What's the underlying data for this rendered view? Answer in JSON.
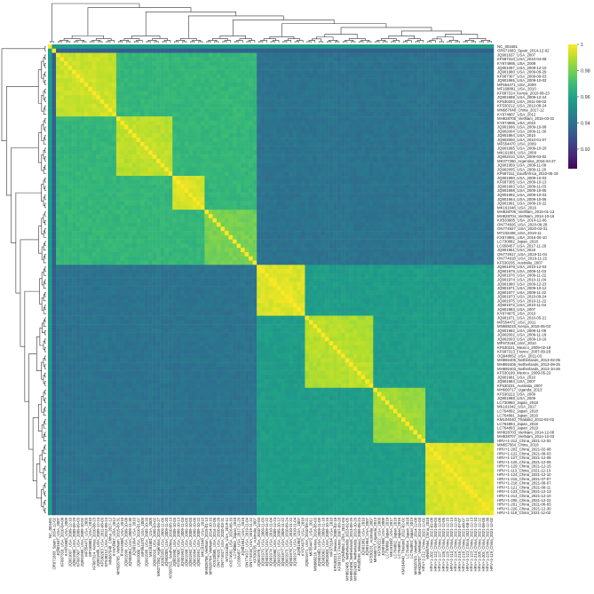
{
  "chart_data": {
    "type": "heatmap",
    "title": "",
    "xlabel": "",
    "ylabel": "",
    "colorscale": [
      "#440154",
      "#3b528b",
      "#21918c",
      "#5ec962",
      "#fde725"
    ],
    "colorbar": {
      "min": 0.905,
      "max": 1.0,
      "ticks": [
        "1",
        "0.98",
        "0.96",
        "0.94",
        "0.92"
      ]
    },
    "dendrograms": {
      "top": true,
      "left": true
    },
    "labels": [
      "NC_003481",
      "OR671683_Spain_2014-12-02",
      "JQ901637_USA_2007",
      "KF687310_USA_2010-04-08",
      "KY674985_USA_2009",
      "JQ901097_USA_2009-12-10",
      "JQ901980_USA_2009-09-29",
      "KF687307_USA_2009-09-03",
      "JQ901965_USA_2009-10-02",
      "MF554471_USA_2009",
      "MF168881_USA_2010",
      "KF687314_Kenya_2010-08-23",
      "JQ901999_USA_2009-12-24",
      "KF530203_USA_2011-08-03",
      "KF530212_USA_2012-08-24",
      "MN687048_China_2017-12",
      "KY674987_USA_2012",
      "MH828705_VietNam_2015-03-31",
      "KY674986_USA_2010",
      "JQ901996_USA_2009-10-08",
      "JQ902004_USA_2009-11-30",
      "JQ901994_USA_2010",
      "JQ902000_USA_2010-01-07",
      "MF554470_USA_2009",
      "JQ901995_USA_2009-10-20",
      "MK161801_USA_2009",
      "JQ902010_USA_2009-03-02",
      "MK077250_Argentina_2016-04-27",
      "JQ901959_USA_2009-11-09",
      "JQ902005_USA_2009-11-20",
      "KF687311_SouthAfrica_2010-05-19",
      "JQ901990_USA_2009-10-03",
      "KF687305_USA_2009-10-13",
      "JQ901993_USA_2009-11-03",
      "JQ901998_USA_2009-10-05",
      "JQ901992_USA_2009-10-03",
      "JQ901964_USA_2009-10-06",
      "JQ901991_USA_2009-10-22",
      "MK161048_USA_2016",
      "MH828706_VietNam_2015-01-13",
      "MH828704_VietNam_2014-10-16",
      "KX533685_USA_2014-12-06",
      "ON774926_USA_2020-09-28",
      "ON774927_USA_2020-03-31",
      "MT232408_USA_2019-11",
      "KX574981_USA_2016-06-10",
      "LC730882_Japan_2018",
      "LC658457_USA_2017-11-29",
      "JQ901961_USA_2018",
      "ON774917_USA_2019-11-04",
      "ON774918_USA_2019-11-22",
      "KF530235_Australia_2007",
      "JQ901978_USA_2010-12-03",
      "JQ901979_USA_2009-11-03",
      "JQ901976_USA_2009-11-22",
      "JQ901974_USA_2010-11-04",
      "JQ901980_USA_2009-12-23",
      "JQ901971_USA_2009-10-12",
      "JQ901977_USA_2009-11-22",
      "JQ901973_USA_2010-09-24",
      "JQ901975_USA_2010-11-22",
      "JQ901972_USA_2010-11-04",
      "JQ901983_USA_2007",
      "KY674975_USA_2010",
      "JQ901971_USA_2010-05-21",
      "MF554472_USA_2011",
      "MN688216_Kenya_2016-05-03",
      "JQ901982_USA_2009-11-09",
      "JQ902002_USA_2009-11-18",
      "JQ902003_USA_2009-10-16",
      "MF973164_USA_2010",
      "KF530221_Mexico_2009-02-18",
      "KF687313_France_2007-09-28",
      "OQ948052_USA_2011-03",
      "MH892405_Netherlands_2013-02-05",
      "MH892406_Netherlands_2013-09-25",
      "MH892403_Netherlands_2013-10-26",
      "KF530199_Mexico_2009-05-23",
      "JQ901981_USA_2010",
      "JQ901984_USA_2007",
      "KF530231_Australia_2007",
      "MH660717_Uganda_2013",
      "KF530222_USA_2009",
      "JQ901988_USA_2009",
      "LC730860_Japan_2018",
      "MK161042_USA_2017",
      "LC764892_Japan_2018",
      "LC764891_Japan_2016",
      "KM104040_Thailand_2012-02-02",
      "LC764894_Japan_2018",
      "LC764893_Japan_2019",
      "MH828703_VietNam_2014-12-08",
      "MH828707_VietNam_2014-12-03",
      "HRV+1-212_China_2021-12-02",
      "MN657564_China_2018",
      "HRV+1-202_China_2021-02-08",
      "HRV+1-122_China_2021-08-03",
      "HRV+1-127_China_2021-12-08",
      "HRV+1-126_China_2021-12-06",
      "HRV+1-129_China_2021-12-15",
      "HRV+1-113_China_2021-12-13",
      "HRV+1-124_China_2021-12-10",
      "HRV+1-215_China_2021-07-07",
      "HRV+1-218_China_2021-08-07",
      "HRV+1-121_China_2021-08-11",
      "HRV+1-123_China_2021-12-13",
      "HRV+1-214_China_2021-12-10",
      "HRV+1-205_China_2021-12-22",
      "HRV+1-201_China_2021-08-05",
      "HRV+1-226_China_2021-12-30",
      "HRV+1-119_China_2021-12-02"
    ]
  }
}
